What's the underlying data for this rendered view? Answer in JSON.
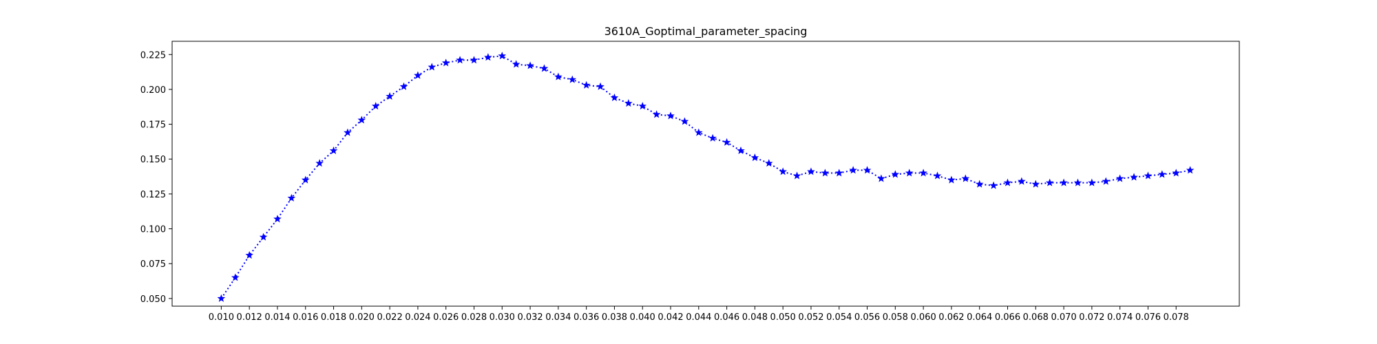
{
  "chart_data": {
    "type": "line",
    "title": "3610A_Goptimal_parameter_spacing",
    "xlabel": "",
    "ylabel": "",
    "xlim": [
      0.0065,
      0.0825
    ],
    "ylim": [
      0.0445,
      0.2345
    ],
    "grid": false,
    "legend": "none",
    "x_ticks": [
      "0.010",
      "0.012",
      "0.014",
      "0.016",
      "0.018",
      "0.020",
      "0.022",
      "0.024",
      "0.026",
      "0.028",
      "0.030",
      "0.032",
      "0.034",
      "0.036",
      "0.038",
      "0.040",
      "0.042",
      "0.044",
      "0.046",
      "0.048",
      "0.050",
      "0.052",
      "0.054",
      "0.056",
      "0.058",
      "0.060",
      "0.062",
      "0.064",
      "0.066",
      "0.068",
      "0.070",
      "0.072",
      "0.074",
      "0.076",
      "0.078"
    ],
    "y_ticks": [
      "0.050",
      "0.075",
      "0.100",
      "0.125",
      "0.150",
      "0.175",
      "0.200",
      "0.225"
    ],
    "series": [
      {
        "color": "#0000ff",
        "linestyle": "dotted",
        "marker": "star",
        "x": [
          0.01,
          0.011,
          0.012,
          0.013,
          0.014,
          0.015,
          0.016,
          0.017,
          0.018,
          0.019,
          0.02,
          0.021,
          0.022,
          0.023,
          0.024,
          0.025,
          0.026,
          0.027,
          0.028,
          0.029,
          0.03,
          0.031,
          0.032,
          0.033,
          0.034,
          0.035,
          0.036,
          0.037,
          0.038,
          0.039,
          0.04,
          0.041,
          0.042,
          0.043,
          0.044,
          0.045,
          0.046,
          0.047,
          0.048,
          0.049,
          0.05,
          0.051,
          0.052,
          0.053,
          0.054,
          0.055,
          0.056,
          0.057,
          0.058,
          0.059,
          0.06,
          0.061,
          0.062,
          0.063,
          0.064,
          0.065,
          0.066,
          0.067,
          0.068,
          0.069,
          0.07,
          0.071,
          0.072,
          0.073,
          0.074,
          0.075,
          0.076,
          0.077,
          0.078,
          0.079
        ],
        "y": [
          0.05,
          0.065,
          0.081,
          0.094,
          0.107,
          0.122,
          0.135,
          0.147,
          0.156,
          0.169,
          0.178,
          0.188,
          0.195,
          0.202,
          0.21,
          0.216,
          0.219,
          0.221,
          0.221,
          0.223,
          0.224,
          0.218,
          0.217,
          0.215,
          0.209,
          0.207,
          0.203,
          0.202,
          0.194,
          0.19,
          0.188,
          0.182,
          0.181,
          0.177,
          0.169,
          0.165,
          0.162,
          0.156,
          0.151,
          0.147,
          0.141,
          0.138,
          0.141,
          0.14,
          0.14,
          0.142,
          0.142,
          0.136,
          0.139,
          0.14,
          0.14,
          0.138,
          0.135,
          0.136,
          0.132,
          0.131,
          0.133,
          0.134,
          0.132,
          0.133,
          0.133,
          0.133,
          0.133,
          0.134,
          0.136,
          0.137,
          0.138,
          0.139,
          0.14,
          0.142
        ]
      }
    ]
  }
}
